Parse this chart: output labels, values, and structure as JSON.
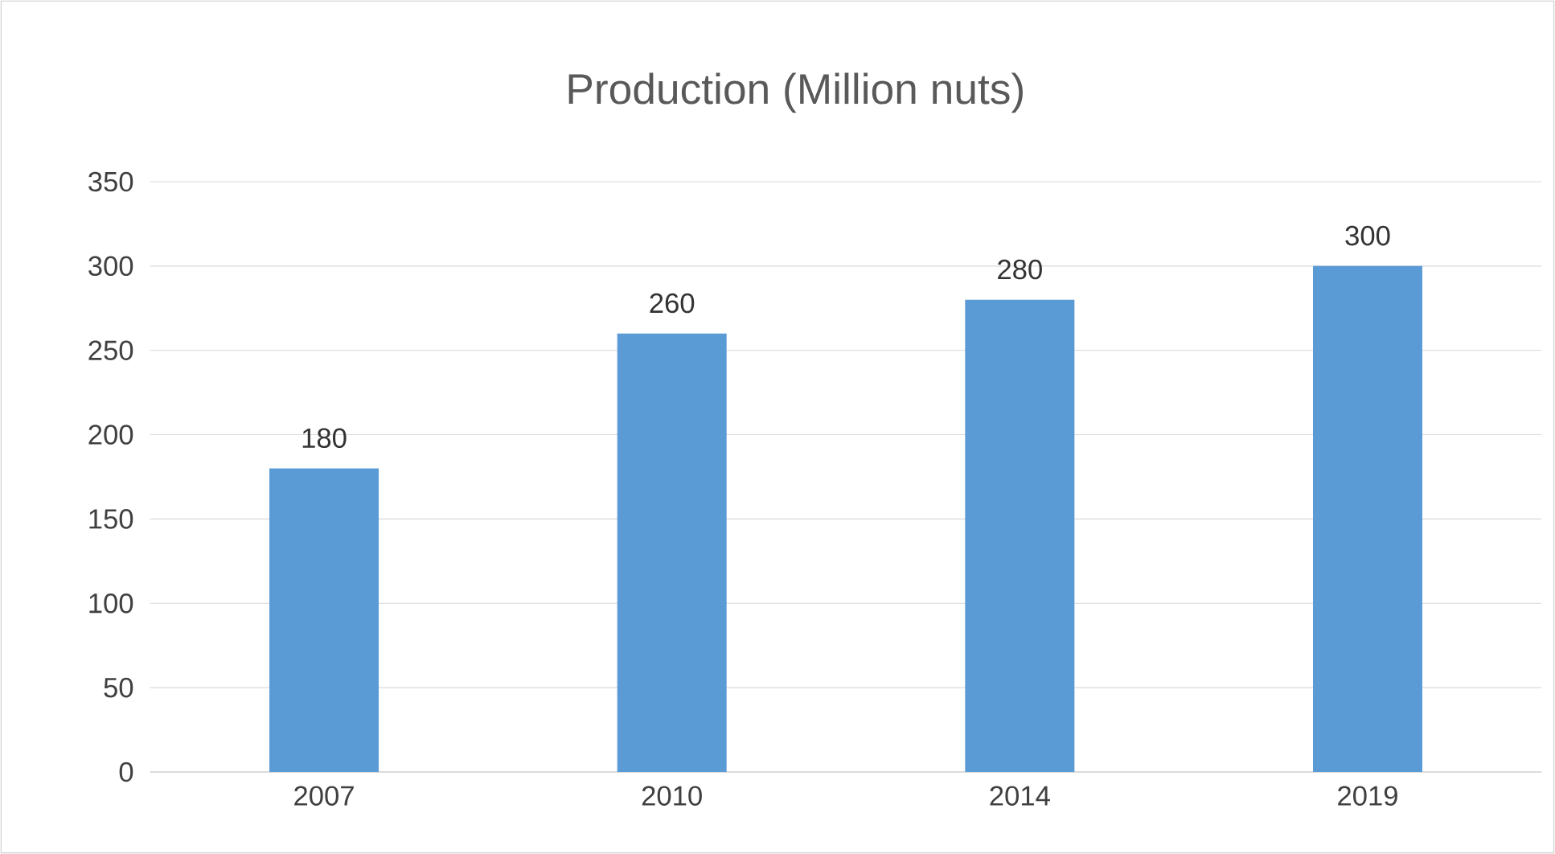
{
  "chart_data": {
    "type": "bar",
    "title": "Production (Million nuts)",
    "categories": [
      "2007",
      "2010",
      "2014",
      "2019"
    ],
    "values": [
      180,
      260,
      280,
      300
    ],
    "color": "#5b9bd5",
    "ylim": [
      0,
      350
    ],
    "yticks": [
      0,
      50,
      100,
      150,
      200,
      250,
      300,
      350
    ],
    "grid": "y",
    "data_labels": true
  }
}
